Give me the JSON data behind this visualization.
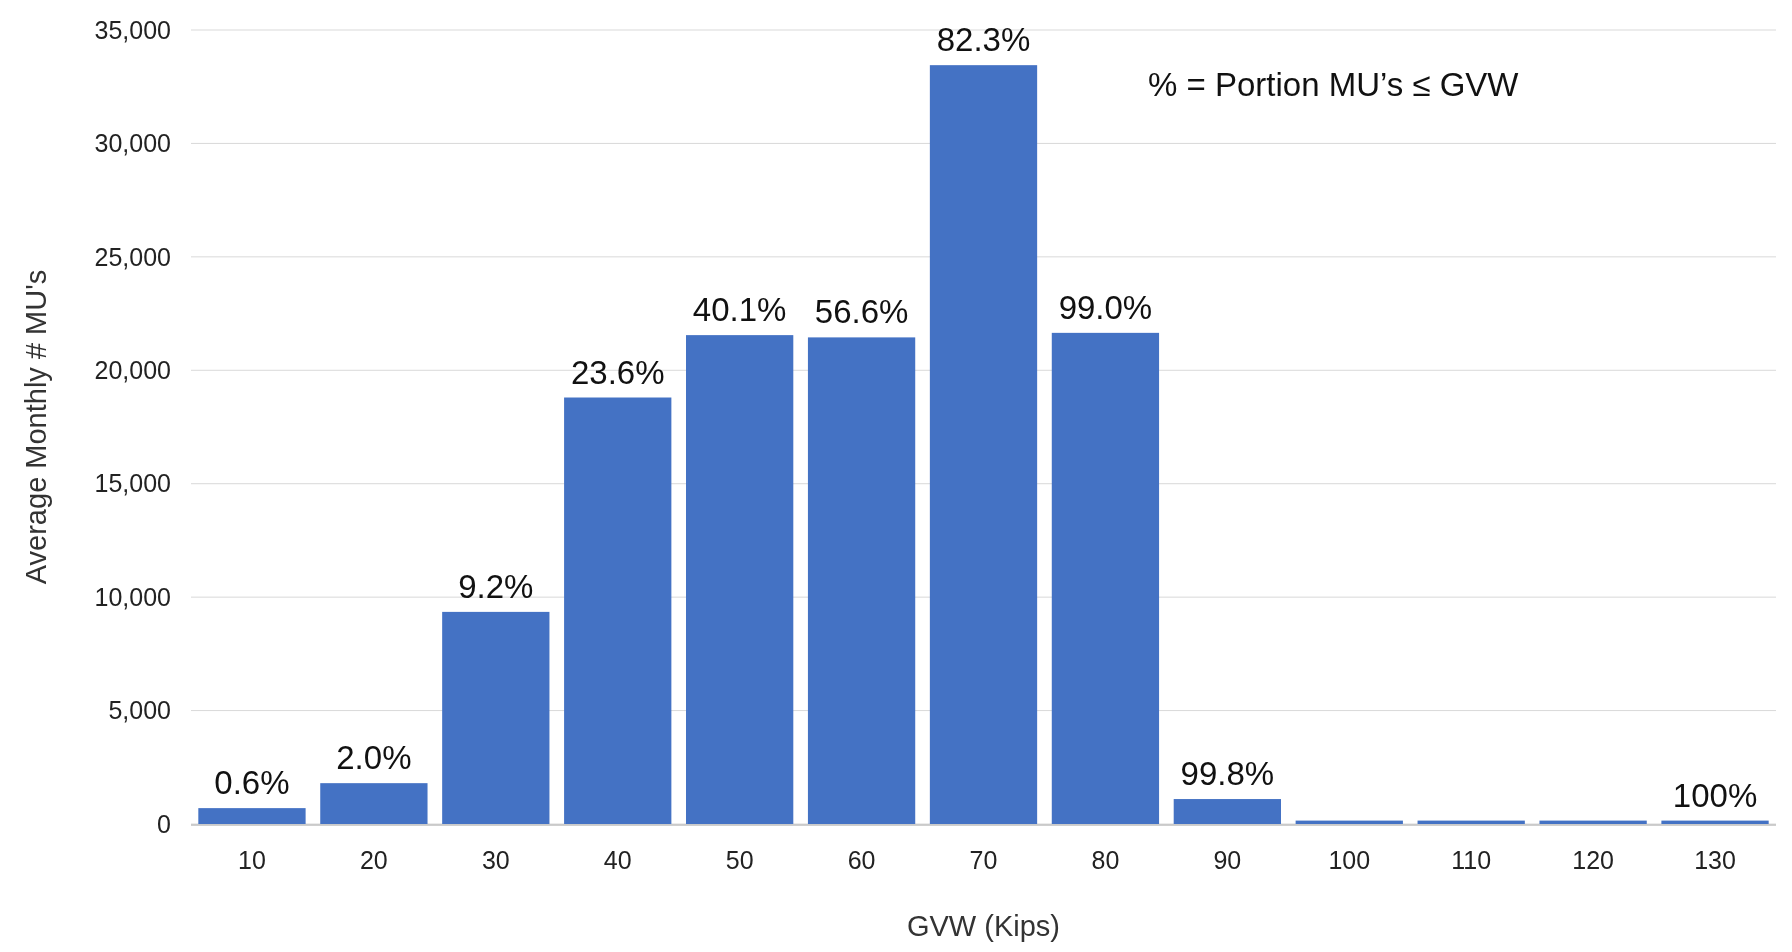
{
  "chart_data": {
    "type": "bar",
    "xlabel": "GVW (Kips)",
    "ylabel": "Average Monthly # MU's",
    "categories": [
      "10",
      "20",
      "30",
      "40",
      "50",
      "60",
      "70",
      "80",
      "90",
      "100",
      "110",
      "120",
      "130"
    ],
    "values": [
      700,
      1800,
      9350,
      18800,
      21550,
      21450,
      33450,
      21650,
      1100,
      150,
      150,
      150,
      150
    ],
    "color": "#4472c4",
    "ylim": [
      0,
      35000
    ],
    "yticks": [
      {
        "value": 0,
        "label": "0"
      },
      {
        "value": 5000,
        "label": "5,000"
      },
      {
        "value": 10000,
        "label": "10,000"
      },
      {
        "value": 15000,
        "label": "15,000"
      },
      {
        "value": 20000,
        "label": "20,000"
      },
      {
        "value": 25000,
        "label": "25,000"
      },
      {
        "value": 30000,
        "label": "30,000"
      },
      {
        "value": 35000,
        "label": "35,000"
      }
    ],
    "grid": "y",
    "annotations": [
      "% = Portion MU’s ≤ GVW",
      {
        "text": "0.6%",
        "x": "10",
        "y": 700
      },
      {
        "text": "2.0%",
        "x": "20",
        "y": 1800
      },
      {
        "text": "9.2%",
        "x": "30",
        "y": 9350
      },
      {
        "text": "23.6%",
        "x": "40",
        "y": 18800
      },
      {
        "text": "40.1%",
        "x": "50",
        "y": 21550
      },
      {
        "text": "56.6%",
        "x": "60",
        "y": 21450
      },
      {
        "text": "82.3%",
        "x": "70",
        "y": 33450
      },
      {
        "text": "99.0%",
        "x": "80",
        "y": 21650
      },
      {
        "text": "99.8%",
        "x": "90",
        "y": 1100
      },
      {
        "text": "100%",
        "x": "130",
        "y": 150
      }
    ]
  }
}
